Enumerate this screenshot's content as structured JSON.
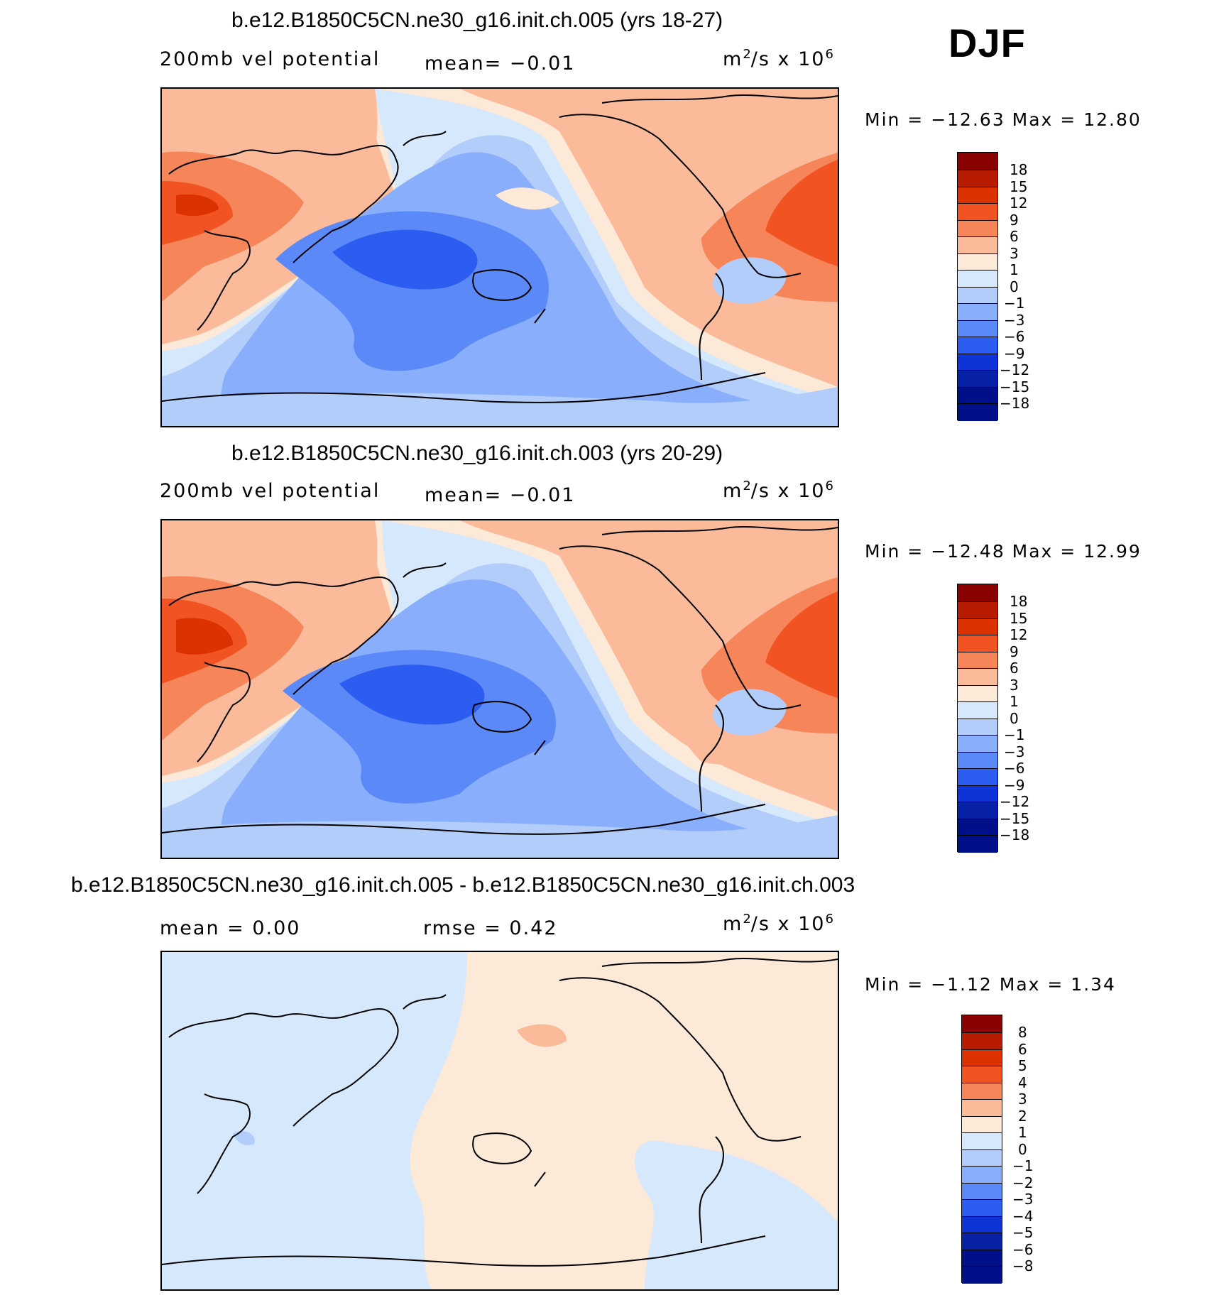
{
  "season": "DJF",
  "panels": [
    {
      "title": "b.e12.B1850C5CN.ne30_g16.init.ch.005 (yrs 18-27)",
      "left_label": "200mb vel potential",
      "center_label": "mean=  −0.01",
      "units_base": "m",
      "units_exp": "2",
      "units_mid": "/s x 10",
      "units_exp2": "6",
      "minmax": "Min = −12.63 Max =  12.80",
      "colorbar": {
        "colors": [
          "#8b0000",
          "#b81c00",
          "#dc3200",
          "#f25322",
          "#f7855a",
          "#fbbb9b",
          "#fde9d8",
          "#d6e8fb",
          "#b3cdfb",
          "#89aefc",
          "#5b8af8",
          "#2c5cf0",
          "#0e33d6",
          "#0621a5",
          "#001088"
        ],
        "ticks": [
          "18",
          "15",
          "12",
          "9",
          "6",
          "3",
          "1",
          "0",
          "−1",
          "−3",
          "−6",
          "−9",
          "−12",
          "−15",
          "−18"
        ]
      }
    },
    {
      "title": "b.e12.B1850C5CN.ne30_g16.init.ch.003 (yrs 20-29)",
      "left_label": "200mb vel potential",
      "center_label": "mean=  −0.01",
      "units_base": "m",
      "units_exp": "2",
      "units_mid": "/s x 10",
      "units_exp2": "6",
      "minmax": "Min = −12.48 Max =  12.99",
      "colorbar": {
        "colors": [
          "#8b0000",
          "#b81c00",
          "#dc3200",
          "#f25322",
          "#f7855a",
          "#fbbb9b",
          "#fde9d8",
          "#d6e8fb",
          "#b3cdfb",
          "#89aefc",
          "#5b8af8",
          "#2c5cf0",
          "#0e33d6",
          "#0621a5",
          "#001088"
        ],
        "ticks": [
          "18",
          "15",
          "12",
          "9",
          "6",
          "3",
          "1",
          "0",
          "−1",
          "−3",
          "−6",
          "−9",
          "−12",
          "−15",
          "−18"
        ]
      }
    },
    {
      "title": "b.e12.B1850C5CN.ne30_g16.init.ch.005 - b.e12.B1850C5CN.ne30_g16.init.ch.003",
      "left_label": "mean =   0.00",
      "center_label": "rmse =   0.42",
      "units_base": "m",
      "units_exp": "2",
      "units_mid": "/s x 10",
      "units_exp2": "6",
      "minmax": "Min =  −1.12 Max =   1.34",
      "colorbar": {
        "colors": [
          "#8b0000",
          "#b81c00",
          "#dc3200",
          "#f25322",
          "#f7855a",
          "#fbbb9b",
          "#fde9d8",
          "#d6e8fb",
          "#b3cdfb",
          "#89aefc",
          "#5b8af8",
          "#2c5cf0",
          "#0e33d6",
          "#0621a5",
          "#001088"
        ],
        "ticks": [
          "8",
          "6",
          "5",
          "4",
          "3",
          "2",
          "1",
          "0",
          "−1",
          "−2",
          "−3",
          "−4",
          "−5",
          "−6",
          "−8"
        ]
      }
    }
  ]
}
